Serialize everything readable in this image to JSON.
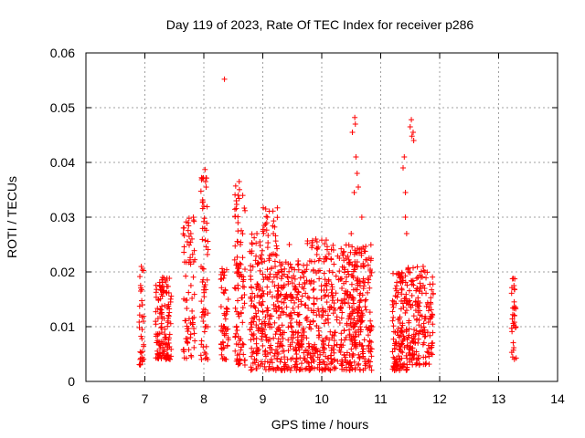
{
  "chart_data": {
    "type": "scatter",
    "title": "Day 119 of 2023, Rate Of TEC Index for receiver p286",
    "xlabel": "GPS time / hours",
    "ylabel": "ROTI / TECUs",
    "xlim": [
      6,
      14
    ],
    "ylim": [
      0,
      0.06
    ],
    "xticks": [
      "6",
      "7",
      "8",
      "9",
      "10",
      "11",
      "12",
      "13",
      "14"
    ],
    "yticks": [
      "0",
      "0.01",
      "0.02",
      "0.03",
      "0.04",
      "0.05",
      "0.06"
    ],
    "grid": true,
    "marker": "plus",
    "series": [
      {
        "name": "ROTI",
        "color": "#ff0000",
        "clusters": [
          {
            "x_range": [
              6.9,
              6.98
            ],
            "y_range": [
              0.003,
              0.021
            ],
            "n": 30,
            "extra": [
              [
                6.94,
                0.021
              ],
              [
                6.93,
                0.0165
              ],
              [
                6.95,
                0.0078
              ],
              [
                6.93,
                0.0042
              ]
            ]
          },
          {
            "x_range": [
              7.18,
              7.45
            ],
            "y_range": [
              0.004,
              0.019
            ],
            "n": 140,
            "extra": [
              [
                7.3,
                0.019
              ],
              [
                7.35,
                0.0185
              ]
            ]
          },
          {
            "x_range": [
              7.65,
              7.85
            ],
            "y_range": [
              0.004,
              0.03
            ],
            "n": 70,
            "extra": [
              [
                7.75,
                0.0298
              ],
              [
                7.72,
                0.0255
              ],
              [
                7.78,
                0.027
              ]
            ]
          },
          {
            "x_range": [
              7.95,
              8.08
            ],
            "y_range": [
              0.004,
              0.038
            ],
            "n": 60,
            "extra": [
              [
                8.02,
                0.0387
              ],
              [
                8.03,
                0.0365
              ],
              [
                8.0,
                0.032
              ],
              [
                8.01,
                0.0298
              ],
              [
                8.0,
                0.0292
              ]
            ]
          },
          {
            "x_range": [
              8.28,
              8.42
            ],
            "y_range": [
              0.004,
              0.021
            ],
            "n": 55,
            "extra": [
              [
                8.35,
                0.0552
              ],
              [
                8.32,
                0.02
              ]
            ]
          },
          {
            "x_range": [
              8.52,
              8.7
            ],
            "y_range": [
              0.003,
              0.036
            ],
            "n": 95,
            "extra": [
              [
                8.6,
                0.0365
              ],
              [
                8.58,
                0.034
              ],
              [
                8.55,
                0.033
              ],
              [
                8.62,
                0.025
              ]
            ]
          },
          {
            "x_range": [
              8.78,
              9.0
            ],
            "y_range": [
              0.002,
              0.027
            ],
            "n": 110,
            "extra": [
              [
                8.9,
                0.027
              ],
              [
                8.95,
                0.0255
              ]
            ]
          },
          {
            "x_range": [
              9.0,
              9.25
            ],
            "y_range": [
              0.002,
              0.032
            ],
            "n": 120,
            "extra": [
              [
                9.05,
                0.0315
              ],
              [
                9.08,
                0.03
              ],
              [
                9.2,
                0.0282
              ],
              [
                9.18,
                0.027
              ]
            ]
          },
          {
            "x_range": [
              9.25,
              9.75
            ],
            "y_range": [
              0.002,
              0.022
            ],
            "n": 220,
            "extra": [
              [
                9.45,
                0.025
              ],
              [
                9.6,
                0.022
              ]
            ]
          },
          {
            "x_range": [
              9.75,
              10.1
            ],
            "y_range": [
              0.002,
              0.026
            ],
            "n": 150,
            "extra": [
              [
                9.9,
                0.026
              ],
              [
                9.92,
                0.0255
              ],
              [
                10.0,
                0.0258
              ]
            ]
          },
          {
            "x_range": [
              10.1,
              10.45
            ],
            "y_range": [
              0.002,
              0.025
            ],
            "n": 140,
            "extra": [
              [
                10.2,
                0.024
              ],
              [
                10.3,
                0.0225
              ]
            ]
          },
          {
            "x_range": [
              10.45,
              10.85
            ],
            "y_range": [
              0.002,
              0.025
            ],
            "n": 230,
            "extra": [
              [
                10.56,
                0.0482
              ],
              [
                10.57,
                0.047
              ],
              [
                10.52,
                0.0455
              ],
              [
                10.58,
                0.041
              ],
              [
                10.6,
                0.038
              ],
              [
                10.62,
                0.0355
              ],
              [
                10.55,
                0.0345
              ],
              [
                10.5,
                0.027
              ],
              [
                10.68,
                0.03
              ],
              [
                10.7,
                0.0245
              ]
            ]
          },
          {
            "x_range": [
              11.2,
              11.45
            ],
            "y_range": [
              0.002,
              0.02
            ],
            "n": 140,
            "extra": [
              [
                11.4,
                0.041
              ],
              [
                11.38,
                0.039
              ],
              [
                11.42,
                0.0345
              ],
              [
                11.42,
                0.03
              ],
              [
                11.44,
                0.027
              ]
            ]
          },
          {
            "x_range": [
              11.45,
              11.65
            ],
            "y_range": [
              0.003,
              0.021
            ],
            "n": 90,
            "extra": [
              [
                11.52,
                0.0478
              ],
              [
                11.5,
                0.0465
              ],
              [
                11.55,
                0.0455
              ],
              [
                11.56,
                0.044
              ],
              [
                11.53,
                0.0448
              ]
            ]
          },
          {
            "x_range": [
              11.65,
              11.9
            ],
            "y_range": [
              0.003,
              0.021
            ],
            "n": 85,
            "extra": [
              [
                11.72,
                0.021
              ],
              [
                11.75,
                0.02
              ]
            ]
          },
          {
            "x_range": [
              13.22,
              13.3
            ],
            "y_range": [
              0.004,
              0.019
            ],
            "n": 30,
            "extra": [
              [
                13.25,
                0.0188
              ],
              [
                13.26,
                0.0175
              ],
              [
                13.24,
                0.0122
              ]
            ]
          }
        ]
      }
    ]
  }
}
